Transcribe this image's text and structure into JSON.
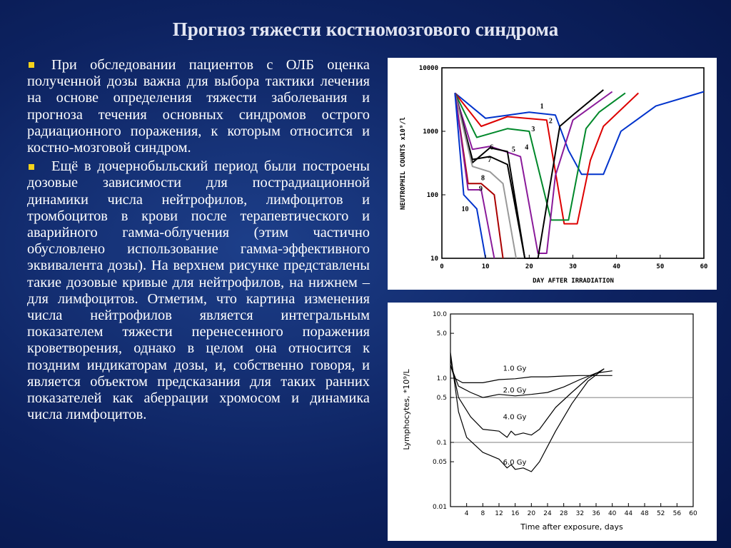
{
  "slide": {
    "title": "Прогноз тяжести костномозгового синдрома",
    "bullets": [
      "При обследовании пациентов с ОЛБ оценка полученной дозы важна для выбора тактики лечения на основе определения тяжести заболевания и прогноза течения основных синдромов острого радиационного поражения, к которым относится и костно-мозговой синдром.",
      "Ещё в дочернобыльский период были построены дозовые зависимости для пострадиационной динамики числа нейтрофилов, лимфоцитов и тромбоцитов в крови после терапевтического и аварийного гамма-облучения (этим частично обусловлено использование гамма-эффективного эквивалента дозы). На верхнем рисунке представлены такие дозовые кривые для нейтрофилов, на нижнем – для лимфоцитов. Отметим, что картина изменения числа нейтрофилов является интегральным показателем тяжести перенесенного поражения кроветворения, однако в целом она относится к поздним индикаторам дозы, и, собственно говоря, и является объектом предсказания для таких ранних показателей как аберрации хромосом и динамика числа лимфоцитов."
    ]
  },
  "chart_data": [
    {
      "type": "line",
      "xlabel": "DAY AFTER IRRADIATION",
      "ylabel": "NEUTROPHIL COUNTS x10⁹/l",
      "xlim": [
        0,
        60
      ],
      "ylim": [
        10,
        10000
      ],
      "yscale": "log",
      "x_ticks": [
        "0",
        "10",
        "20",
        "30",
        "40",
        "50",
        "60"
      ],
      "y_ticks": [
        "10",
        "100",
        "1000",
        "10000"
      ],
      "series": [
        {
          "name": "1",
          "color": "#0033cc",
          "x": [
            3,
            10,
            20,
            26,
            29,
            32,
            37,
            41,
            49,
            60
          ],
          "y": [
            4000,
            1600,
            2000,
            1800,
            500,
            210,
            210,
            1000,
            2500,
            4200
          ]
        },
        {
          "name": "2",
          "color": "#dd0000",
          "x": [
            3,
            9,
            15,
            24,
            28,
            31,
            34,
            37,
            45
          ],
          "y": [
            4000,
            1200,
            1700,
            1500,
            35,
            35,
            350,
            1200,
            4000
          ]
        },
        {
          "name": "3",
          "color": "#00882a",
          "x": [
            3,
            8,
            15,
            20,
            25,
            29,
            33,
            36,
            42
          ],
          "y": [
            4000,
            800,
            1100,
            1000,
            40,
            40,
            1100,
            2000,
            4000
          ]
        },
        {
          "name": "4",
          "color": "#8a1a9a",
          "x": [
            3,
            7,
            11,
            18,
            22,
            24,
            26,
            30,
            39
          ],
          "y": [
            4000,
            520,
            580,
            400,
            12,
            12,
            200,
            1500,
            4200
          ]
        },
        {
          "name": "5",
          "color": "#000000",
          "x": [
            3,
            7,
            11,
            15,
            19,
            22,
            27,
            30,
            37
          ],
          "y": [
            4000,
            320,
            550,
            480,
            10,
            10,
            1200,
            1800,
            4500
          ]
        },
        {
          "name": "6",
          "color": "#000000",
          "x": [
            3,
            7,
            11,
            15,
            19
          ],
          "y": [
            4000,
            360,
            400,
            300,
            10
          ]
        },
        {
          "name": "7",
          "color": "#999999",
          "x": [
            3,
            7,
            11,
            14,
            17
          ],
          "y": [
            4000,
            280,
            230,
            150,
            10
          ]
        },
        {
          "name": "8",
          "color": "#aa0000",
          "x": [
            3,
            6,
            9,
            12,
            14
          ],
          "y": [
            4000,
            150,
            150,
            100,
            10
          ]
        },
        {
          "name": "9",
          "color": "#8a1a9a",
          "x": [
            3,
            6,
            9,
            12
          ],
          "y": [
            4000,
            120,
            120,
            10
          ]
        },
        {
          "name": "10",
          "color": "#0033cc",
          "x": [
            3,
            5,
            8,
            10
          ],
          "y": [
            4000,
            100,
            60,
            10
          ]
        }
      ]
    },
    {
      "type": "line",
      "xlabel": "Time after exposure, days",
      "ylabel": "Lymphocytes, *10⁹/L",
      "xlim": [
        0,
        60
      ],
      "ylim": [
        0.01,
        10
      ],
      "yscale": "log",
      "x_ticks": [
        "4",
        "8",
        "12",
        "16",
        "20",
        "24",
        "28",
        "32",
        "36",
        "40",
        "44",
        "48",
        "52",
        "56",
        "60"
      ],
      "y_ticks": [
        "10.0",
        "5.0",
        "1.0",
        "0.5",
        "0.1",
        "0.05",
        "0.01"
      ],
      "reference_lines": [
        0.5,
        0.1
      ],
      "series": [
        {
          "name": "1.0 Gy",
          "color": "#000000",
          "x": [
            0,
            1,
            3,
            8,
            12,
            16,
            20,
            24,
            28,
            32,
            36,
            40
          ],
          "y": [
            1.6,
            1.0,
            0.85,
            0.85,
            0.95,
            0.98,
            1.05,
            1.05,
            1.08,
            1.1,
            1.1,
            1.1
          ]
        },
        {
          "name": "2.0 Gy",
          "color": "#000000",
          "x": [
            0,
            2,
            5,
            8,
            12,
            16,
            20,
            24,
            28,
            32,
            36,
            40
          ],
          "y": [
            1.6,
            0.75,
            0.6,
            0.5,
            0.56,
            0.53,
            0.56,
            0.6,
            0.73,
            0.95,
            1.2,
            1.3
          ]
        },
        {
          "name": "4.0 Gy",
          "color": "#000000",
          "x": [
            0,
            2,
            5,
            8,
            12,
            14,
            15,
            16,
            18,
            20,
            22,
            26,
            30,
            34,
            38
          ],
          "y": [
            2.0,
            0.5,
            0.25,
            0.16,
            0.15,
            0.12,
            0.15,
            0.13,
            0.14,
            0.13,
            0.16,
            0.35,
            0.6,
            1.0,
            1.4
          ]
        },
        {
          "name": "6.0 Gy",
          "color": "#000000",
          "x": [
            0,
            2,
            4,
            8,
            12,
            14,
            15,
            16,
            18,
            20,
            22,
            26,
            30,
            34,
            38
          ],
          "y": [
            2.5,
            0.3,
            0.12,
            0.07,
            0.055,
            0.04,
            0.045,
            0.038,
            0.04,
            0.035,
            0.05,
            0.15,
            0.4,
            0.9,
            1.4
          ]
        }
      ]
    }
  ]
}
